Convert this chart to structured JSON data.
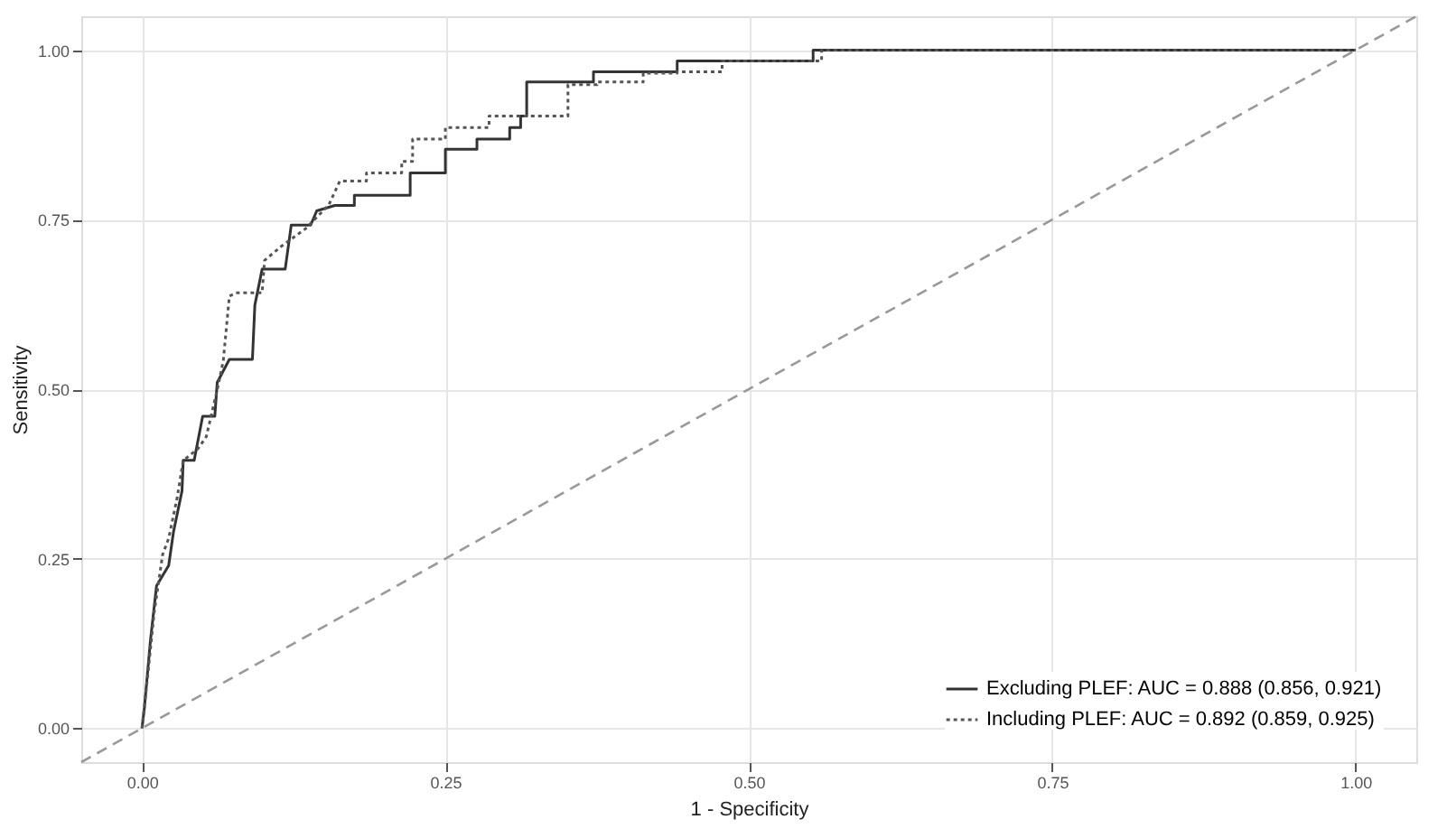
{
  "chart_data": {
    "type": "line",
    "xlabel": "1 - Specificity",
    "ylabel": "Sensitivity",
    "xlim": [
      -0.05,
      1.05
    ],
    "ylim": [
      -0.05,
      1.05
    ],
    "xticks": [
      {
        "value": 0,
        "label": "0.00"
      },
      {
        "value": 0.25,
        "label": "0.25"
      },
      {
        "value": 0.5,
        "label": "0.50"
      },
      {
        "value": 0.75,
        "label": "0.75"
      },
      {
        "value": 1,
        "label": "1.00"
      }
    ],
    "yticks": [
      {
        "value": 0,
        "label": "0.00"
      },
      {
        "value": 0.25,
        "label": "0.25"
      },
      {
        "value": 0.5,
        "label": "0.50"
      },
      {
        "value": 0.75,
        "label": "0.75"
      },
      {
        "value": 1,
        "label": "1.00"
      }
    ],
    "grid": true,
    "legend": "bottom right",
    "series": [
      {
        "name": "Excluding PLEF: AUC = 0.888 (0.856, 0.921)",
        "color": "#333333",
        "line_style": "solid",
        "x": [
          0,
          0.002,
          0.007,
          0.012,
          0.017,
          0.022,
          0.026,
          0.033,
          0.034,
          0.043,
          0.05,
          0.06,
          0.062,
          0.072,
          0.091,
          0.093,
          0.099,
          0.118,
          0.123,
          0.139,
          0.144,
          0.159,
          0.175,
          0.175,
          0.221,
          0.221,
          0.25,
          0.25,
          0.276,
          0.276,
          0.303,
          0.303,
          0.312,
          0.312,
          0.317,
          0.317,
          0.372,
          0.372,
          0.441,
          0.441,
          0.553,
          0.553,
          1.0
        ],
        "values": [
          0,
          0.03,
          0.13,
          0.21,
          0.225,
          0.24,
          0.29,
          0.35,
          0.395,
          0.395,
          0.46,
          0.46,
          0.51,
          0.544,
          0.544,
          0.624,
          0.677,
          0.677,
          0.742,
          0.742,
          0.763,
          0.771,
          0.771,
          0.786,
          0.786,
          0.819,
          0.819,
          0.854,
          0.854,
          0.869,
          0.869,
          0.886,
          0.886,
          0.903,
          0.903,
          0.953,
          0.953,
          0.968,
          0.968,
          0.984,
          0.984,
          1.0,
          1.0
        ]
      },
      {
        "name": "Including PLEF: AUC = 0.892 (0.859, 0.925)",
        "color": "#555555",
        "line_style": "dotted",
        "x": [
          0,
          0.005,
          0.01,
          0.017,
          0.022,
          0.029,
          0.034,
          0.046,
          0.053,
          0.0625,
          0.067,
          0.072,
          0.077,
          0.099,
          0.101,
          0.115,
          0.135,
          0.154,
          0.163,
          0.185,
          0.185,
          0.214,
          0.214,
          0.223,
          0.223,
          0.25,
          0.25,
          0.286,
          0.286,
          0.351,
          0.351,
          0.375,
          0.375,
          0.413,
          0.413,
          0.441,
          0.441,
          0.478,
          0.478,
          0.56,
          0.56,
          1.0
        ],
        "values": [
          0,
          0.082,
          0.17,
          0.256,
          0.28,
          0.34,
          0.395,
          0.412,
          0.43,
          0.503,
          0.542,
          0.637,
          0.642,
          0.642,
          0.69,
          0.711,
          0.737,
          0.772,
          0.807,
          0.807,
          0.819,
          0.819,
          0.836,
          0.836,
          0.869,
          0.869,
          0.886,
          0.886,
          0.903,
          0.903,
          0.949,
          0.949,
          0.953,
          0.953,
          0.966,
          0.966,
          0.968,
          0.968,
          0.984,
          0.984,
          1.0,
          1.0
        ]
      },
      {
        "color": "#999999",
        "line_style": "dashed",
        "x": [
          -0.05,
          1.05
        ],
        "values": [
          -0.05,
          1.05
        ]
      }
    ]
  }
}
